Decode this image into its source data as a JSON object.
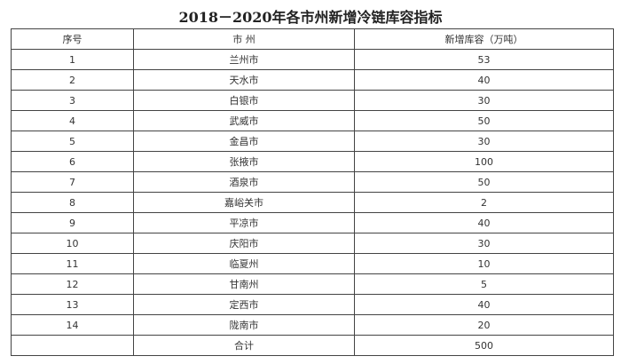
{
  "title": "2018－2020年各市州新增冷链库容指标",
  "headers": [
    "序号",
    "市 州",
    "新增库容（万吨）"
  ],
  "rows": [
    [
      "1",
      "兰州市",
      "53"
    ],
    [
      "2",
      "天水市",
      "40"
    ],
    [
      "3",
      "白银市",
      "30"
    ],
    [
      "4",
      "武威市",
      "50"
    ],
    [
      "5",
      "金昌市",
      "30"
    ],
    [
      "6",
      "张掖市",
      "100"
    ],
    [
      "7",
      "酒泉市",
      "50"
    ],
    [
      "8",
      "嘉峪关市",
      "2"
    ],
    [
      "9",
      "平凉市",
      "40"
    ],
    [
      "10",
      "庆阳市",
      "30"
    ],
    [
      "11",
      "临夏州",
      "10"
    ],
    [
      "12",
      "甘南州",
      "5"
    ],
    [
      "13",
      "定西市",
      "40"
    ],
    [
      "14",
      "陇南市",
      "20"
    ],
    [
      "",
      "合计",
      "500"
    ]
  ]
}
